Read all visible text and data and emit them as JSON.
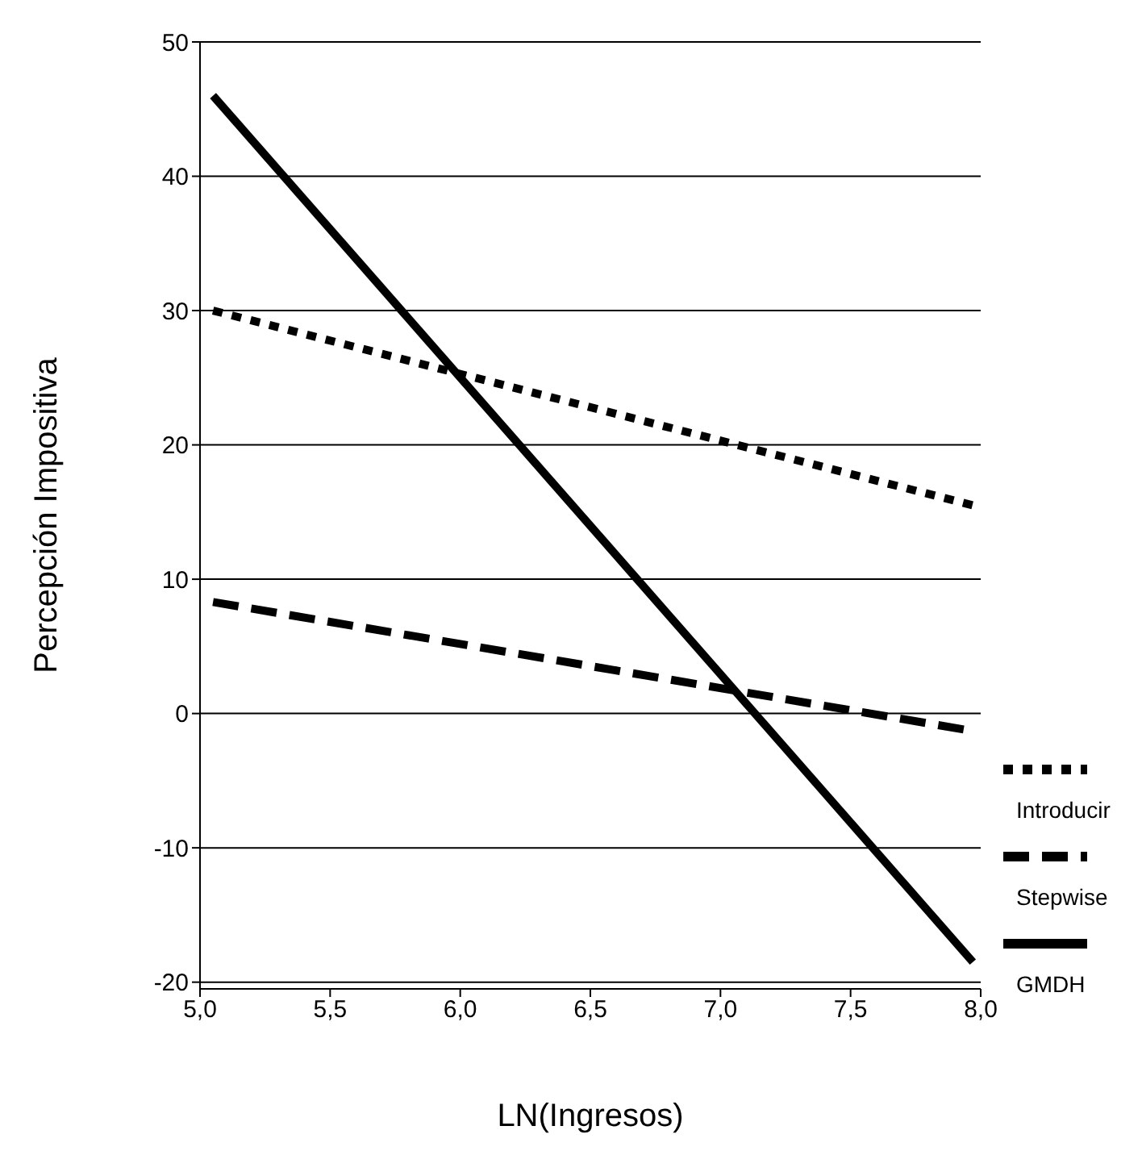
{
  "chart_data": {
    "type": "line",
    "xlabel": "LN(Ingresos)",
    "ylabel": "Percepción Impositiva",
    "xlim": [
      5,
      8
    ],
    "xticks": [
      {
        "value": 5,
        "label": "5,0"
      },
      {
        "value": 5.5,
        "label": "5,5"
      },
      {
        "value": 6,
        "label": "6,0"
      },
      {
        "value": 6.5,
        "label": "6,5"
      },
      {
        "value": 7,
        "label": "7,0"
      },
      {
        "value": 7.5,
        "label": "7,5"
      },
      {
        "value": 8,
        "label": "8,0"
      }
    ],
    "ylim": [
      -20.5,
      50
    ],
    "yticks": [
      -20,
      -10,
      0,
      10,
      20,
      30,
      40,
      50
    ],
    "x": [
      5.05,
      7.97
    ],
    "series": [
      {
        "name": "Introducir",
        "color": "#000000",
        "line_style": "dotted",
        "values": [
          30,
          15.5
        ]
      },
      {
        "name": "Stepwise",
        "color": "#000000",
        "line_style": "dashed",
        "values": [
          8.3,
          -1.3
        ]
      },
      {
        "name": "GMDH",
        "color": "#000000",
        "line_style": "solid",
        "values": [
          46,
          -18.5
        ]
      }
    ],
    "grid": "y",
    "legend": "bottom right"
  }
}
